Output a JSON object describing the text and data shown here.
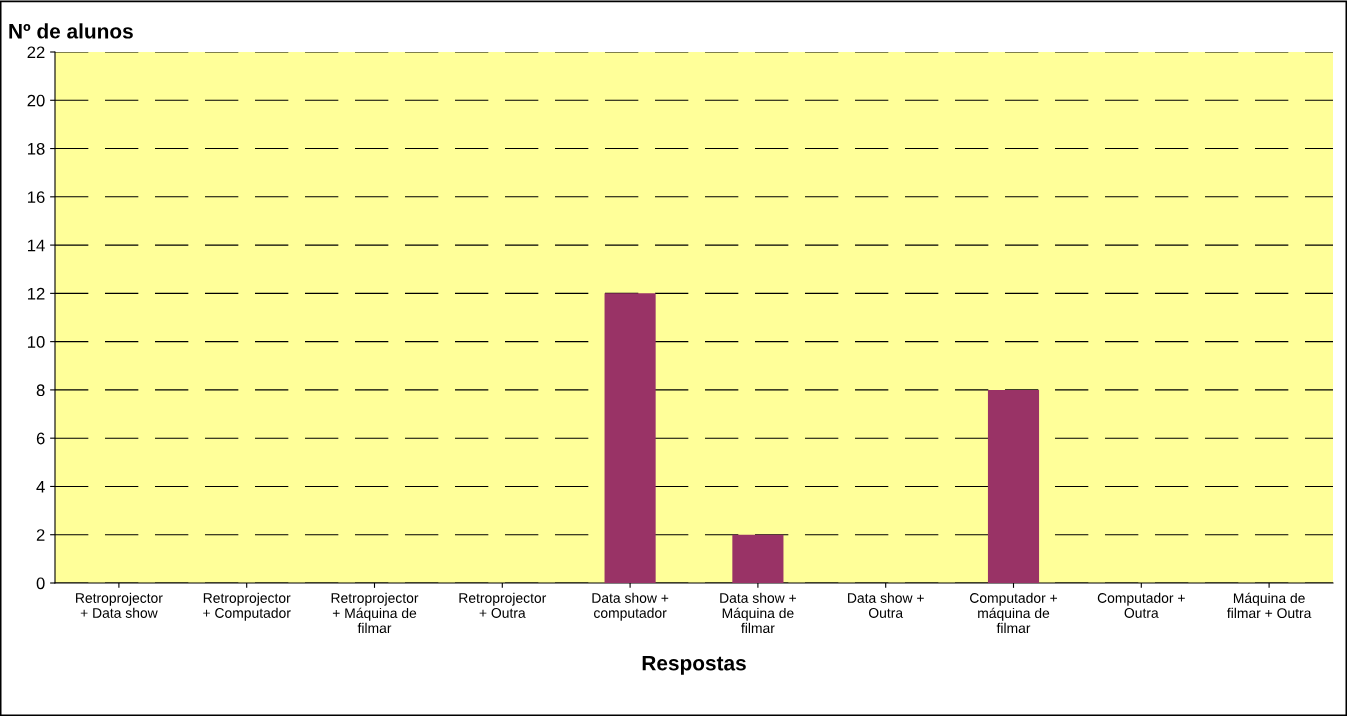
{
  "chart_data": {
    "type": "bar",
    "ylabel": "Nº de alunos",
    "xlabel": "Respostas",
    "categories": [
      "Retroprojector\n+ Data show",
      "Retroprojector\n+ Computador",
      "Retroprojector\n+ Máquina de\nfilmar",
      "Retroprojector\n+ Outra",
      "Data show +\ncomputador",
      "Data show +\nMáquina de\nfilmar",
      "Data show +\nOutra",
      "Computador +\nmáquina de\nfilmar",
      "Computador +\nOutra",
      "Máquina de\nfilmar + Outra"
    ],
    "values": [
      0,
      0,
      0,
      0,
      12,
      2,
      0,
      8,
      0,
      0
    ],
    "color": "#993366",
    "ylim": [
      0,
      22
    ],
    "yticks": [
      0,
      2,
      4,
      6,
      8,
      10,
      12,
      14,
      16,
      18,
      20,
      22
    ],
    "grid": "y"
  }
}
